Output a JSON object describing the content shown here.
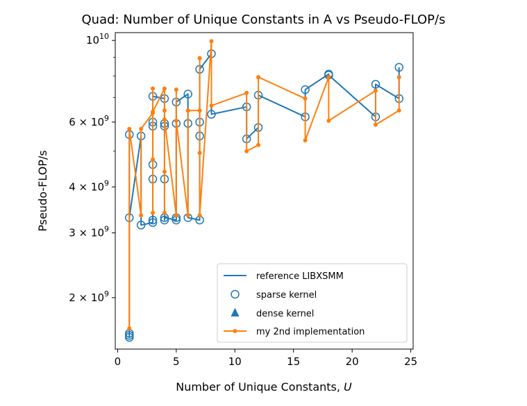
{
  "chart_data": {
    "type": "line",
    "title": "Quad: Number of Unique Constants in A vs Pseudo-FLOP/s",
    "xlabel": "Number of Unique Constants, ",
    "xlabel_var": "U",
    "ylabel": "Pseudo-FLOP/s",
    "xlim": [
      -0.2,
      25.2
    ],
    "ylim": [
      1450000000.0,
      10500000000.0
    ],
    "yscale": "log",
    "x_ticks": [
      0,
      5,
      10,
      15,
      20,
      25
    ],
    "y_ticks": [
      {
        "value": 2000000000.0,
        "mantissa": "2",
        "base": "10",
        "exp": "9"
      },
      {
        "value": 3000000000.0,
        "mantissa": "3",
        "base": "10",
        "exp": "9"
      },
      {
        "value": 4000000000.0,
        "mantissa": "4",
        "base": "10",
        "exp": "9"
      },
      {
        "value": 6000000000.0,
        "mantissa": "6",
        "base": "10",
        "exp": "9"
      },
      {
        "value": 10000000000.0,
        "mantissa": "",
        "base": "10",
        "exp": "10"
      }
    ],
    "legend_position": "lower-right",
    "legend": [
      {
        "label": "reference LIBXSMM",
        "marker": "line",
        "color": "#1f77b4"
      },
      {
        "label": "sparse kernel",
        "marker": "open-circle",
        "color": "#1f77b4"
      },
      {
        "label": "dense kernel",
        "marker": "triangle",
        "color": "#1f77b4"
      },
      {
        "label": "my 2nd implementation",
        "marker": "line-dot",
        "color": "#ff7f0e"
      }
    ],
    "series": [
      {
        "name": "reference LIBXSMM",
        "style": "line",
        "color": "#1f77b4",
        "points": [
          [
            1,
            1580000000.0
          ],
          [
            1,
            1560000000.0
          ],
          [
            1,
            1600000000.0
          ],
          [
            1,
            5550000000.0
          ],
          [
            1,
            3300000000.0
          ],
          [
            2,
            5500000000.0
          ],
          [
            2,
            3150000000.0
          ],
          [
            3,
            3200000000.0
          ],
          [
            3,
            3250000000.0
          ],
          [
            3,
            4200000000.0
          ],
          [
            3,
            4600000000.0
          ],
          [
            3,
            5850000000.0
          ],
          [
            3,
            6000000000.0
          ],
          [
            3,
            7050000000.0
          ],
          [
            4,
            6950000000.0
          ],
          [
            4,
            5850000000.0
          ],
          [
            4,
            5950000000.0
          ],
          [
            4,
            4200000000.0
          ],
          [
            4,
            3250000000.0
          ],
          [
            4,
            3300000000.0
          ],
          [
            5,
            3250000000.0
          ],
          [
            5,
            3300000000.0
          ],
          [
            5,
            5950000000.0
          ],
          [
            5,
            6800000000.0
          ],
          [
            6,
            7150000000.0
          ],
          [
            6,
            5950000000.0
          ],
          [
            6,
            3300000000.0
          ],
          [
            7,
            3250000000.0
          ],
          [
            7,
            5500000000.0
          ],
          [
            7,
            6000000000.0
          ],
          [
            7,
            8350000000.0
          ],
          [
            8,
            9200000000.0
          ],
          [
            8,
            6300000000.0
          ],
          [
            11,
            6600000000.0
          ],
          [
            11,
            5400000000.0
          ],
          [
            12,
            5800000000.0
          ],
          [
            12,
            7100000000.0
          ],
          [
            16,
            6200000000.0
          ],
          [
            16,
            7350000000.0
          ],
          [
            18,
            8100000000.0
          ],
          [
            18,
            8050000000.0
          ],
          [
            22,
            6200000000.0
          ],
          [
            22,
            7600000000.0
          ],
          [
            24,
            6950000000.0
          ],
          [
            24,
            8450000000.0
          ]
        ]
      },
      {
        "name": "sparse kernel",
        "style": "open-circle",
        "color": "#1f77b4",
        "points": [
          [
            1,
            1560000000.0
          ],
          [
            1,
            1580000000.0
          ],
          [
            1,
            1600000000.0
          ],
          [
            1,
            3300000000.0
          ],
          [
            1,
            5550000000.0
          ],
          [
            2,
            3150000000.0
          ],
          [
            2,
            5500000000.0
          ],
          [
            3,
            3200000000.0
          ],
          [
            3,
            3250000000.0
          ],
          [
            3,
            4200000000.0
          ],
          [
            3,
            4600000000.0
          ],
          [
            3,
            5850000000.0
          ],
          [
            3,
            6000000000.0
          ],
          [
            3,
            7050000000.0
          ],
          [
            4,
            3250000000.0
          ],
          [
            4,
            3300000000.0
          ],
          [
            4,
            4200000000.0
          ],
          [
            4,
            5850000000.0
          ],
          [
            4,
            5950000000.0
          ],
          [
            4,
            6950000000.0
          ],
          [
            5,
            3250000000.0
          ],
          [
            5,
            3300000000.0
          ],
          [
            5,
            5950000000.0
          ],
          [
            5,
            6800000000.0
          ],
          [
            6,
            3300000000.0
          ],
          [
            6,
            5950000000.0
          ],
          [
            6,
            7150000000.0
          ],
          [
            7,
            3250000000.0
          ],
          [
            7,
            5500000000.0
          ],
          [
            7,
            6000000000.0
          ],
          [
            7,
            8350000000.0
          ],
          [
            8,
            6300000000.0
          ],
          [
            8,
            9200000000.0
          ],
          [
            11,
            5400000000.0
          ],
          [
            11,
            6600000000.0
          ],
          [
            12,
            5800000000.0
          ],
          [
            12,
            7100000000.0
          ],
          [
            16,
            6200000000.0
          ],
          [
            16,
            7350000000.0
          ],
          [
            18,
            8050000000.0
          ],
          [
            18,
            8100000000.0
          ],
          [
            22,
            6200000000.0
          ],
          [
            22,
            7600000000.0
          ],
          [
            24,
            6950000000.0
          ],
          [
            24,
            8450000000.0
          ]
        ]
      },
      {
        "name": "dense kernel",
        "style": "triangle",
        "color": "#1f77b4",
        "points": []
      },
      {
        "name": "my 2nd implementation",
        "style": "line-dot",
        "color": "#ff7f0e",
        "points": [
          [
            1,
            1650000000.0
          ],
          [
            1,
            5750000000.0
          ],
          [
            2,
            3350000000.0
          ],
          [
            2,
            5750000000.0
          ],
          [
            3,
            6350000000.0
          ],
          [
            3,
            4750000000.0
          ],
          [
            3,
            7400000000.0
          ],
          [
            3,
            3400000000.0
          ],
          [
            3,
            6400000000.0
          ],
          [
            4,
            7400000000.0
          ],
          [
            4,
            4400000000.0
          ],
          [
            4,
            6450000000.0
          ],
          [
            4,
            3400000000.0
          ],
          [
            4,
            6100000000.0
          ],
          [
            5,
            3350000000.0
          ],
          [
            5,
            7350000000.0
          ],
          [
            5,
            6050000000.0
          ],
          [
            6,
            3350000000.0
          ],
          [
            6,
            6450000000.0
          ],
          [
            7,
            6450000000.0
          ],
          [
            7,
            4950000000.0
          ],
          [
            7,
            8950000000.0
          ],
          [
            7,
            3350000000.0
          ],
          [
            8,
            9950000000.0
          ],
          [
            8,
            6650000000.0
          ],
          [
            11,
            7200000000.0
          ],
          [
            11,
            5000000000.0
          ],
          [
            12,
            5200000000.0
          ],
          [
            12,
            7950000000.0
          ],
          [
            16,
            6950000000.0
          ],
          [
            16,
            5350000000.0
          ],
          [
            18,
            7950000000.0
          ],
          [
            18,
            6050000000.0
          ],
          [
            22,
            7300000000.0
          ],
          [
            22,
            5900000000.0
          ],
          [
            24,
            6450000000.0
          ],
          [
            24,
            7950000000.0
          ]
        ]
      }
    ]
  }
}
